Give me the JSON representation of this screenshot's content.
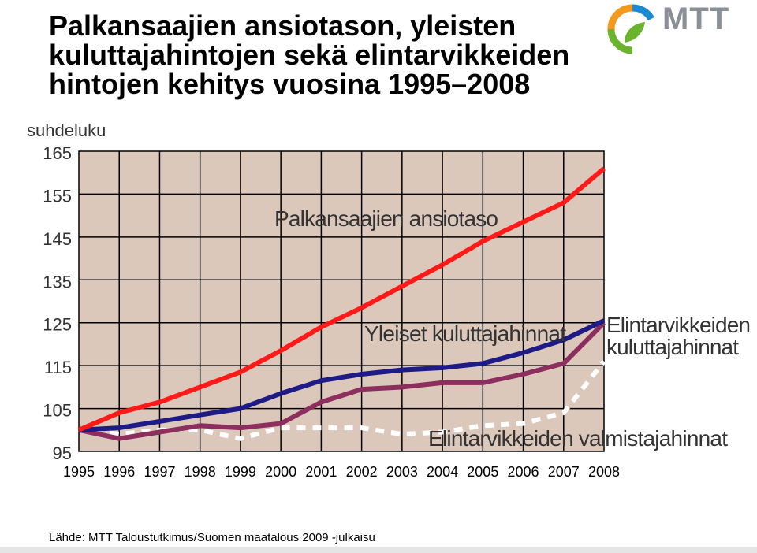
{
  "title": "Palkansaajien ansiotason, yleisten kuluttajahintojen sekä elintarvikkeiden hintojen kehitys vuosina 1995–2008",
  "logo_text": "MTT",
  "source": "Lähde: MTT Taloustutkimus/Suomen maatalous 2009 -julkaisu",
  "colors": {
    "plot_bg": "#dcc7bb",
    "grid": "#000000",
    "wages": "#ff1a1a",
    "consumer": "#1e1b86",
    "food_consumer": "#8c2e5e",
    "food_producer": "#ffffff",
    "logo_green": "#6ab42d",
    "logo_orange": "#f39a1e",
    "logo_blue": "#1b8ad0",
    "logo_text": "#8a9097"
  },
  "chart_data": {
    "type": "line",
    "title": "",
    "ylabel": "suhdeluku",
    "xlabel": "",
    "x": [
      "1995",
      "1996",
      "1997",
      "1998",
      "1999",
      "2000",
      "2001",
      "2002",
      "2003",
      "2004",
      "2005",
      "2006",
      "2007",
      "2008"
    ],
    "ylim": [
      95,
      165
    ],
    "yticks": [
      95,
      105,
      115,
      125,
      135,
      145,
      155,
      165
    ],
    "grid": true,
    "series": [
      {
        "name": "Palkansaajien ansiotaso",
        "color": "#ff1a1a",
        "style": "solid",
        "values": [
          100,
          104,
          106.5,
          110,
          113.5,
          118.5,
          124,
          128.5,
          133.5,
          138.5,
          144,
          148.5,
          153,
          161
        ]
      },
      {
        "name": "Yleiset kuluttajahinnat",
        "color": "#1e1b86",
        "style": "solid",
        "values": [
          100,
          100.5,
          102,
          103.5,
          105,
          108.5,
          111.5,
          113,
          114,
          114.5,
          115.5,
          118,
          121,
          125.5
        ]
      },
      {
        "name": "Elintarvikkeiden kuluttajahinnat",
        "color": "#8c2e5e",
        "style": "solid",
        "values": [
          100,
          98,
          99.5,
          101,
          100.5,
          101.5,
          106.5,
          109.5,
          110,
          111,
          111,
          113,
          115.5,
          125
        ]
      },
      {
        "name": "Elintarvikkeiden valmistajahinnat",
        "color": "#ffffff",
        "style": "dotted",
        "values": [
          100,
          99,
          100,
          100,
          98,
          100.5,
          100.5,
          100.5,
          99,
          99.5,
          101,
          101.5,
          104,
          116
        ]
      }
    ]
  }
}
